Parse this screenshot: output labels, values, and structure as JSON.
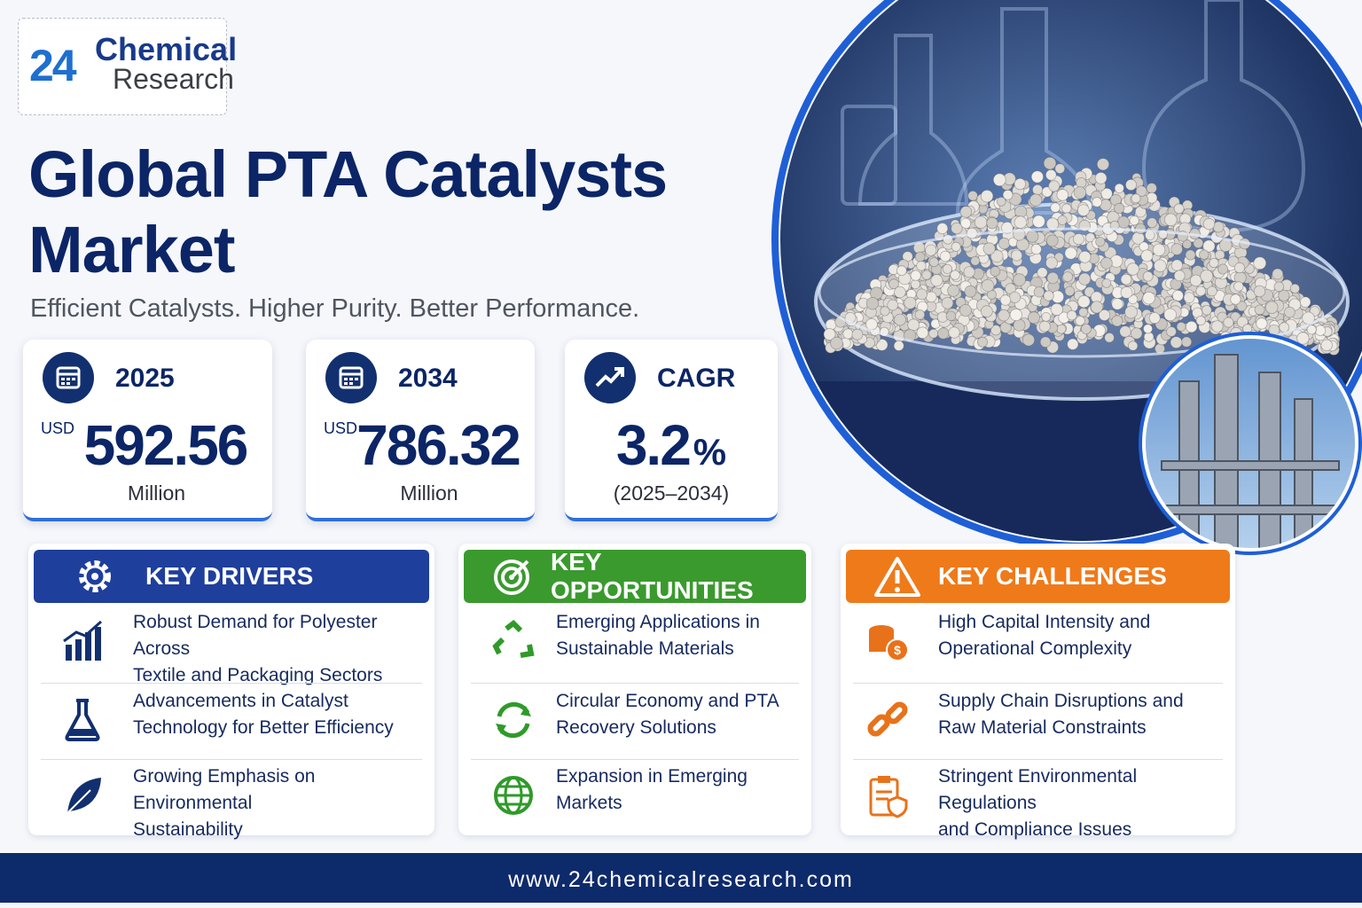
{
  "logo": {
    "number": "24",
    "line1": "Chemical",
    "line2": "Research"
  },
  "header": {
    "title_line1": "Global PTA Catalysts",
    "title_line2": "Market",
    "tagline": "Efficient Catalysts. Higher Purity. Better Performance."
  },
  "stats": [
    {
      "label": "2025",
      "prefix": "USD",
      "value": "592.56",
      "unit": "Million"
    },
    {
      "label": "2034",
      "prefix": "USD",
      "value": "786.32",
      "unit": "Million"
    },
    {
      "label": "CAGR",
      "value": "3.2",
      "suffix": "%",
      "unit": "(2025–2034)"
    }
  ],
  "panels": [
    {
      "title": "KEY DRIVERS",
      "items": [
        [
          "Robust Demand for Polyester Across",
          "Textile and Packaging Sectors"
        ],
        [
          "Advancements in Catalyst",
          "Technology for Better Efficiency"
        ],
        [
          "Growing Emphasis on Environmental",
          "Sustainability"
        ]
      ]
    },
    {
      "title": "KEY OPPORTUNITIES",
      "items": [
        [
          "Emerging Applications in",
          "Sustainable Materials"
        ],
        [
          "Circular Economy and PTA",
          "Recovery Solutions"
        ],
        [
          "Expansion in Emerging",
          "Markets"
        ]
      ]
    },
    {
      "title": "KEY CHALLENGES",
      "items": [
        [
          "High Capital Intensity and",
          "Operational Complexity"
        ],
        [
          "Supply Chain Disruptions and",
          "Raw Material Constraints"
        ],
        [
          "Stringent Environmental Regulations",
          "and Compliance Issues"
        ]
      ]
    }
  ],
  "footer": {
    "url": "www.24chemicalresearch.com"
  }
}
